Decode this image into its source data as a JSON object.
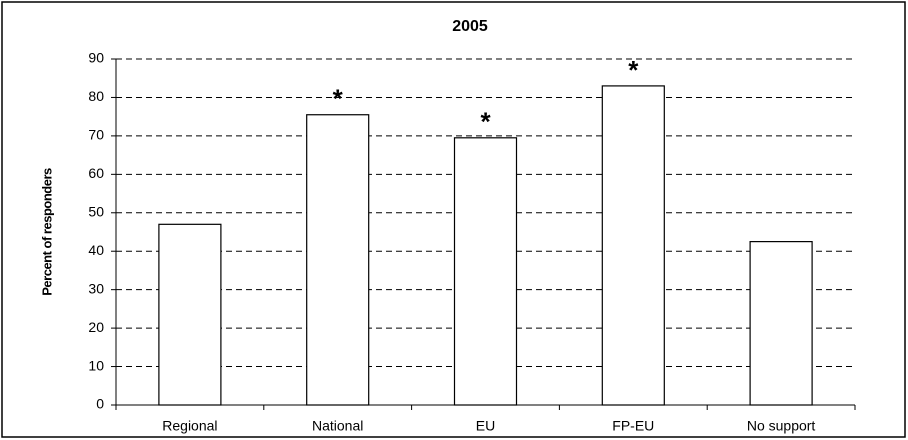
{
  "chart_data": {
    "type": "bar",
    "title": "2005",
    "y_label": "Percent of responders",
    "categories": [
      "Regional",
      "National",
      "EU",
      "FP-EU",
      "No support"
    ],
    "values": [
      47,
      75.5,
      69.5,
      83,
      42.5
    ],
    "annotations": [
      null,
      "*",
      "*",
      "*",
      null
    ],
    "color": "#ffffff",
    "edge_color": "#000000",
    "ylim": [
      0,
      90
    ],
    "yticks": [
      0,
      10,
      20,
      30,
      40,
      50,
      60,
      70,
      80,
      90
    ],
    "grid": true
  }
}
